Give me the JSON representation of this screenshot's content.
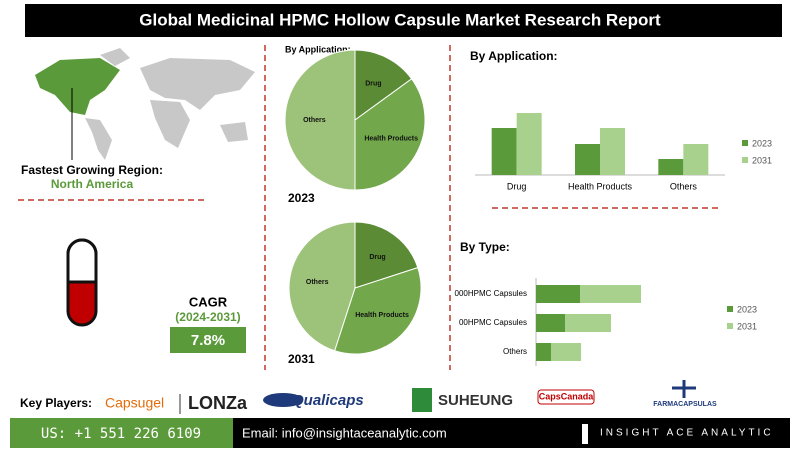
{
  "header": {
    "title": "Global Medicinal HPMC Hollow Capsule Market Research Report"
  },
  "region": {
    "label": "Fastest Growing Region:",
    "value": "North America"
  },
  "cagr": {
    "label": "CAGR",
    "period": "(2024-2031)",
    "value": "7.8%"
  },
  "key_players": {
    "label": "Key Players:",
    "companies": [
      "Capsugel",
      "LONZa",
      "Qualicaps",
      "SUHEUNG",
      "CapsCanada",
      "FARMACAPSULAS"
    ]
  },
  "footer": {
    "phone": "US: +1 551 226 6109",
    "email": "Email: info@insightaceanalytic.com",
    "brand": "INSIGHT ACE ANALYTIC"
  },
  "chart_data": [
    {
      "type": "pie",
      "title": "By Application:",
      "caption": "2023",
      "categories": [
        "Drug",
        "Health Products",
        "Others"
      ],
      "values": [
        15,
        35,
        50
      ],
      "colors": [
        "#5b8c35",
        "#72a84b",
        "#9dc37a"
      ]
    },
    {
      "type": "pie",
      "caption": "2031",
      "categories": [
        "Drug",
        "Health Products",
        "Others"
      ],
      "values": [
        20,
        35,
        45
      ],
      "colors": [
        "#5b8c35",
        "#72a84b",
        "#9dc37a"
      ]
    },
    {
      "type": "bar",
      "title": "By Application:",
      "categories": [
        "Drug",
        "Health Products",
        "Others"
      ],
      "series": [
        {
          "name": "2023",
          "color": "#5b9a3a",
          "values": [
            47,
            31,
            16
          ]
        },
        {
          "name": "2031",
          "color": "#a9d18e",
          "values": [
            62,
            47,
            31
          ]
        }
      ],
      "legend": "right"
    },
    {
      "type": "hbar_stacked",
      "title": "By Type:",
      "categories": [
        "000HPMC Capsules",
        "00HPMC Capsules",
        "Others"
      ],
      "series": [
        {
          "name": "2023",
          "color": "#5b9a3a",
          "values": [
            44,
            29,
            15
          ]
        },
        {
          "name": "2031",
          "color": "#a9d18e",
          "values": [
            61,
            46,
            30
          ]
        }
      ],
      "legend": "right"
    }
  ]
}
